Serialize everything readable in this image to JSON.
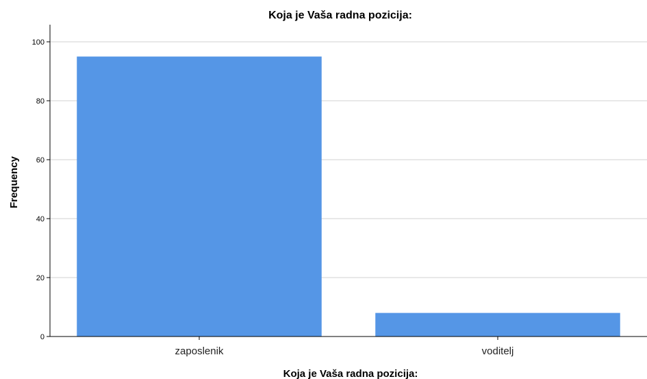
{
  "chart_data": {
    "type": "bar",
    "title": "Koja je Vaša radna pozicija:",
    "xlabel": "Koja je Vaša radna pozicija:",
    "ylabel": "Frequency",
    "categories": [
      "zaposlenik",
      "voditelj"
    ],
    "values": [
      95,
      8
    ],
    "ylim": [
      0,
      100
    ],
    "yticks": [
      "0",
      "20",
      "40",
      "60",
      "80",
      "100"
    ],
    "grid": true,
    "bar_color": "#5596e6"
  }
}
